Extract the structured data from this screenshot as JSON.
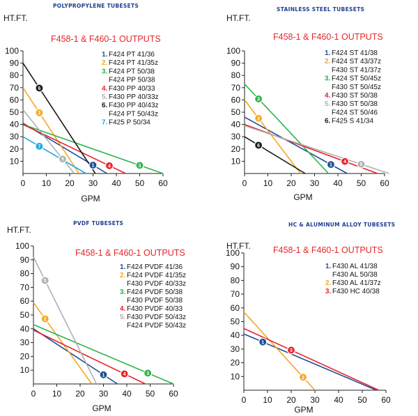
{
  "colors": {
    "navy": "#1f4e96",
    "orange": "#f5a623",
    "green": "#2fb34a",
    "red": "#e8242b",
    "gray": "#b0b0b0",
    "black": "#1a1a1a",
    "cyan": "#23a8e0",
    "title_blue": "#1f3f8f",
    "axis": "#222222"
  },
  "chart_data": [
    {
      "type": "line",
      "section_title": "POLYPROPYLENE TUBESETS",
      "title": "F458-1 & F460-1 OUTPUTS",
      "ylabel": "HT.FT.",
      "xlabel": "GPM",
      "xlim": [
        0,
        60
      ],
      "ylim": [
        0,
        100
      ],
      "xticks": [
        "0",
        "10",
        "20",
        "30",
        "40",
        "50",
        "60"
      ],
      "yticks": [
        "10",
        "20",
        "30",
        "40",
        "50",
        "60",
        "70",
        "80",
        "90",
        "100"
      ],
      "grid": false,
      "legend_placement": "upper-right",
      "legend": [
        {
          "num": "1.",
          "lines": [
            "F424 PT 41/36"
          ],
          "color": "navy"
        },
        {
          "num": "2.",
          "lines": [
            "F424 PT 41/35z"
          ],
          "color": "orange"
        },
        {
          "num": "3.",
          "lines": [
            "F424 PT 50/38",
            "F424 PP 50/38"
          ],
          "color": "green"
        },
        {
          "num": "4.",
          "lines": [
            "F430 PP 40/33"
          ],
          "color": "red"
        },
        {
          "num": "5.",
          "lines": [
            "F430 PP 40/33z"
          ],
          "color": "gray"
        },
        {
          "num": "6.",
          "lines": [
            "F430 PP 40/43z",
            "F424 PT 50/43z"
          ],
          "color": "black"
        },
        {
          "num": "7.",
          "lines": [
            "F425 P 50/34"
          ],
          "color": "cyan"
        }
      ],
      "series": [
        {
          "id": "1",
          "color": "navy",
          "x": [
            0,
            36
          ],
          "y": [
            41,
            0
          ],
          "marker_x": 30
        },
        {
          "id": "2",
          "color": "orange",
          "x": [
            0,
            24
          ],
          "y": [
            70,
            0
          ],
          "marker_x": 7
        },
        {
          "id": "3",
          "color": "green",
          "x": [
            0,
            60
          ],
          "y": [
            40,
            0
          ],
          "marker_x": 50
        },
        {
          "id": "4",
          "color": "red",
          "x": [
            0,
            44
          ],
          "y": [
            40,
            0
          ],
          "marker_x": 37
        },
        {
          "id": "5",
          "color": "gray",
          "x": [
            0,
            22
          ],
          "y": [
            52,
            0
          ],
          "marker_x": 17
        },
        {
          "id": "6",
          "color": "black",
          "x": [
            0,
            31
          ],
          "y": [
            90,
            0
          ],
          "marker_x": 7
        },
        {
          "id": "7",
          "color": "cyan",
          "x": [
            0,
            27
          ],
          "y": [
            30,
            0
          ],
          "marker_x": 7
        }
      ]
    },
    {
      "type": "line",
      "section_title": "STAINLESS STEEL TUBESETS",
      "title": "F458-1 & F460-1 OUTPUTS",
      "ylabel": "HT.FT.",
      "xlabel": "GPM",
      "xlim": [
        0,
        60
      ],
      "ylim": [
        0,
        100
      ],
      "xticks": [
        "0",
        "10",
        "20",
        "30",
        "40",
        "50",
        "60"
      ],
      "yticks": [
        "10",
        "20",
        "30",
        "40",
        "50",
        "60",
        "70",
        "80",
        "90",
        "100"
      ],
      "grid": false,
      "legend_placement": "upper-right",
      "legend": [
        {
          "num": "1.",
          "lines": [
            "F424 ST 41/38"
          ],
          "color": "navy"
        },
        {
          "num": "2.",
          "lines": [
            "F424 ST 43/37z",
            "F430 ST 41/37z"
          ],
          "color": "orange"
        },
        {
          "num": "3.",
          "lines": [
            "F424 ST 50/45z",
            "F430 ST 50/45z"
          ],
          "color": "green"
        },
        {
          "num": "4.",
          "lines": [
            "F430 ST 50/38"
          ],
          "color": "red"
        },
        {
          "num": "5.",
          "lines": [
            "F430 ST 50/38",
            "F424 ST 50/46"
          ],
          "color": "gray"
        },
        {
          "num": "6.",
          "lines": [
            "F425 S 41/34"
          ],
          "color": "black"
        }
      ],
      "series": [
        {
          "id": "1",
          "color": "navy",
          "x": [
            0,
            44
          ],
          "y": [
            46,
            0
          ],
          "marker_x": 37
        },
        {
          "id": "2",
          "color": "orange",
          "x": [
            0,
            24
          ],
          "y": [
            60,
            0
          ],
          "marker_x": 6
        },
        {
          "id": "3",
          "color": "green",
          "x": [
            0,
            36
          ],
          "y": [
            73,
            0
          ],
          "marker_x": 6
        },
        {
          "id": "4",
          "color": "red",
          "x": [
            0,
            57
          ],
          "y": [
            40,
            0
          ],
          "marker_x": 43
        },
        {
          "id": "5",
          "color": "gray",
          "x": [
            0,
            62
          ],
          "y": [
            39,
            0
          ],
          "marker_x": 50
        },
        {
          "id": "6",
          "color": "black",
          "x": [
            0,
            26
          ],
          "y": [
            30,
            0
          ],
          "marker_x": 6
        }
      ]
    },
    {
      "type": "line",
      "section_title": "PVDF TUBESETS",
      "title": "F458-1 & F460-1 OUTPUTS",
      "ylabel": "HT.FT.",
      "xlabel": "GPM",
      "xlim": [
        0,
        60
      ],
      "ylim": [
        0,
        100
      ],
      "xticks": [
        "0",
        "10",
        "20",
        "30",
        "40",
        "50",
        "60"
      ],
      "yticks": [
        "10",
        "20",
        "30",
        "40",
        "50",
        "60",
        "70",
        "80",
        "90",
        "100"
      ],
      "grid": false,
      "legend_placement": "upper-right",
      "legend": [
        {
          "num": "1.",
          "lines": [
            "F424 PVDF 41/36"
          ],
          "color": "navy"
        },
        {
          "num": "2.",
          "lines": [
            "F424 PVDF 41/35z",
            "F430 PVDF 40/33z"
          ],
          "color": "orange"
        },
        {
          "num": "3.",
          "lines": [
            "F424 PVDF 50/38",
            "F430 PVDF 50/38"
          ],
          "color": "green"
        },
        {
          "num": "4.",
          "lines": [
            "F430 PVDF 40/33"
          ],
          "color": "red"
        },
        {
          "num": "5.",
          "lines": [
            "F430 PVDF 50/43z",
            "F424 PVDF 50/43z"
          ],
          "color": "gray"
        }
      ],
      "series": [
        {
          "id": "1",
          "color": "navy",
          "x": [
            0,
            36
          ],
          "y": [
            40,
            0
          ],
          "marker_x": 30
        },
        {
          "id": "2",
          "color": "orange",
          "x": [
            0,
            25
          ],
          "y": [
            59,
            0
          ],
          "marker_x": 5
        },
        {
          "id": "3",
          "color": "green",
          "x": [
            0,
            60
          ],
          "y": [
            43,
            0
          ],
          "marker_x": 49
        },
        {
          "id": "4",
          "color": "red",
          "x": [
            0,
            48
          ],
          "y": [
            39,
            0
          ],
          "marker_x": 39
        },
        {
          "id": "5",
          "color": "gray",
          "x": [
            0,
            27
          ],
          "y": [
            92,
            0
          ],
          "marker_x": 5
        }
      ]
    },
    {
      "type": "line",
      "section_title": "HC & ALUMINUM ALLOY TUBESETS",
      "title": "F458-1 & F460-1 OUTPUTS",
      "ylabel": "HT.FT.",
      "xlabel": "GPM",
      "xlim": [
        0,
        60
      ],
      "ylim": [
        0,
        100
      ],
      "xticks": [
        "0",
        "10",
        "20",
        "30",
        "40",
        "50",
        "60"
      ],
      "yticks": [
        "10",
        "20",
        "30",
        "40",
        "50",
        "60",
        "70",
        "80",
        "90",
        "100"
      ],
      "grid": false,
      "legend_placement": "upper-right",
      "legend": [
        {
          "num": "1.",
          "lines": [
            "F430 AL 41/38",
            "F430 AL 50/38"
          ],
          "color": "navy"
        },
        {
          "num": "2.",
          "lines": [
            "F430 AL  41/37z"
          ],
          "color": "orange"
        },
        {
          "num": "3.",
          "lines": [
            "F430 HC  40/38"
          ],
          "color": "red"
        }
      ],
      "series": [
        {
          "id": "1",
          "color": "navy",
          "x": [
            0,
            56
          ],
          "y": [
            41,
            0
          ],
          "marker_x": 8
        },
        {
          "id": "2",
          "color": "orange",
          "x": [
            0,
            30
          ],
          "y": [
            57,
            0
          ],
          "marker_x": 25
        },
        {
          "id": "3",
          "color": "red",
          "x": [
            0,
            57
          ],
          "y": [
            45,
            0
          ],
          "marker_x": 20
        }
      ]
    }
  ]
}
